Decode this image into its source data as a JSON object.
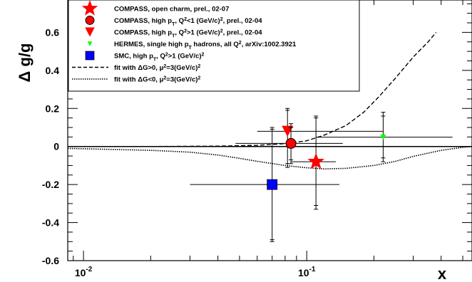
{
  "chart_data": {
    "type": "scatter",
    "title": "",
    "xlabel": "x",
    "ylabel": "Δ g/g",
    "xscale": "log",
    "xlim": [
      0.0085,
      0.55
    ],
    "ylim": [
      -0.6,
      0.77
    ],
    "grid": false,
    "legend_placement": "top-left",
    "x_ticks": [
      {
        "value": 0.01,
        "base": "10",
        "exp": "-2"
      },
      {
        "value": 0.1,
        "base": "10",
        "exp": "-1"
      }
    ],
    "y_ticks": [
      {
        "value": -0.6,
        "label": "-0.6"
      },
      {
        "value": -0.4,
        "label": "-0.4"
      },
      {
        "value": -0.2,
        "label": "-0.2"
      },
      {
        "value": 0,
        "label": "0"
      },
      {
        "value": 0.2,
        "label": "0.2"
      },
      {
        "value": 0.4,
        "label": "0.4"
      },
      {
        "value": 0.6,
        "label": "0.6"
      }
    ],
    "series": [
      {
        "name": "COMPASS, open charm, prel., 02-07",
        "marker": "star",
        "color": "#ff0000",
        "points": [
          {
            "x": 0.11,
            "y": -0.08,
            "xlo": 0.085,
            "xhi": 0.135,
            "ylo": -0.31,
            "yhi": 0.15,
            "ylo2": -0.33,
            "yhi2": 0.16
          }
        ]
      },
      {
        "name": "COMPASS, high p_T, Q²<1 (GeV/c)², prel., 02-04",
        "marker": "circle",
        "color": "#ff0000",
        "points": [
          {
            "x": 0.085,
            "y": 0.016,
            "xlo": 0.048,
            "xhi": 0.145,
            "ylo": -0.07,
            "yhi": 0.1,
            "ylo2": -0.09,
            "yhi2": 0.12
          }
        ]
      },
      {
        "name": "COMPASS, high p_T, Q²>1 (GeV/c)², prel., 02-04",
        "marker": "triangle-down",
        "color": "#ff0000",
        "points": [
          {
            "x": 0.082,
            "y": 0.08,
            "xlo": 0.06,
            "xhi": 0.22,
            "ylo": -0.09,
            "yhi": 0.19,
            "ylo2": -0.11,
            "yhi2": 0.2
          }
        ]
      },
      {
        "name": "HERMES, single high p_T hadrons, all Q², arXiv:1002.3921",
        "marker": "triangle-down-small",
        "color": "#00ff00",
        "points": [
          {
            "x": 0.22,
            "y": 0.049,
            "xlo": 0.11,
            "xhi": 0.45,
            "ylo": -0.06,
            "yhi": 0.16,
            "ylo2": -0.08,
            "yhi2": 0.18
          }
        ]
      },
      {
        "name": "SMC, high p_T, Q²>1 (GeV/c)²",
        "marker": "square",
        "color": "#0000ff",
        "points": [
          {
            "x": 0.07,
            "y": -0.2,
            "xlo": 0.03,
            "xhi": 0.14,
            "ylo": -0.49,
            "yhi": 0.09,
            "ylo2": -0.5,
            "yhi2": 0.1
          }
        ]
      }
    ],
    "curves": [
      {
        "name": "fit with ΔG>0, μ²=3(GeV/c)²",
        "style": "dashed",
        "points": [
          [
            0.0085,
            0
          ],
          [
            0.02,
            0
          ],
          [
            0.04,
            0.002
          ],
          [
            0.06,
            0.006
          ],
          [
            0.08,
            0.015
          ],
          [
            0.1,
            0.03
          ],
          [
            0.12,
            0.06
          ],
          [
            0.15,
            0.11
          ],
          [
            0.18,
            0.18
          ],
          [
            0.21,
            0.26
          ],
          [
            0.25,
            0.36
          ],
          [
            0.3,
            0.47
          ],
          [
            0.35,
            0.55
          ],
          [
            0.38,
            0.6
          ]
        ]
      },
      {
        "name": "fit with ΔG<0, μ²=3(GeV/c)²",
        "style": "dotted",
        "points": [
          [
            0.0085,
            -0.01
          ],
          [
            0.01,
            -0.012
          ],
          [
            0.02,
            -0.02
          ],
          [
            0.03,
            -0.03
          ],
          [
            0.04,
            -0.045
          ],
          [
            0.05,
            -0.062
          ],
          [
            0.06,
            -0.078
          ],
          [
            0.08,
            -0.1
          ],
          [
            0.1,
            -0.112
          ],
          [
            0.12,
            -0.118
          ],
          [
            0.15,
            -0.115
          ],
          [
            0.2,
            -0.1
          ],
          [
            0.25,
            -0.078
          ],
          [
            0.3,
            -0.052
          ],
          [
            0.4,
            -0.02
          ],
          [
            0.5,
            -0.005
          ],
          [
            0.55,
            0
          ]
        ]
      }
    ],
    "legend": [
      {
        "marker": "star",
        "color": "#ff0000",
        "text": "COMPASS, open charm, prel., 02-07"
      },
      {
        "marker": "circle",
        "color": "#ff0000",
        "text": "COMPASS, high p_T, Q²<1 (GeV/c)², prel., 02-04"
      },
      {
        "marker": "triangle-down",
        "color": "#ff0000",
        "text": "COMPASS, high p_T, Q²>1 (GeV/c)², prel., 02-04"
      },
      {
        "marker": "triangle-down-small",
        "color": "#00ff00",
        "text": "HERMES, single high p_T hadrons, all Q², arXiv:1002.3921"
      },
      {
        "marker": "square",
        "color": "#0000ff",
        "text": "SMC, high p_T, Q²>1 (GeV/c)²"
      },
      {
        "marker": "dashed",
        "color": "#000000",
        "text": "fit with ΔG>0, μ²=3(GeV/c)²"
      },
      {
        "marker": "dotted",
        "color": "#000000",
        "text": "fit with ΔG<0, μ²=3(GeV/c)²"
      }
    ]
  }
}
